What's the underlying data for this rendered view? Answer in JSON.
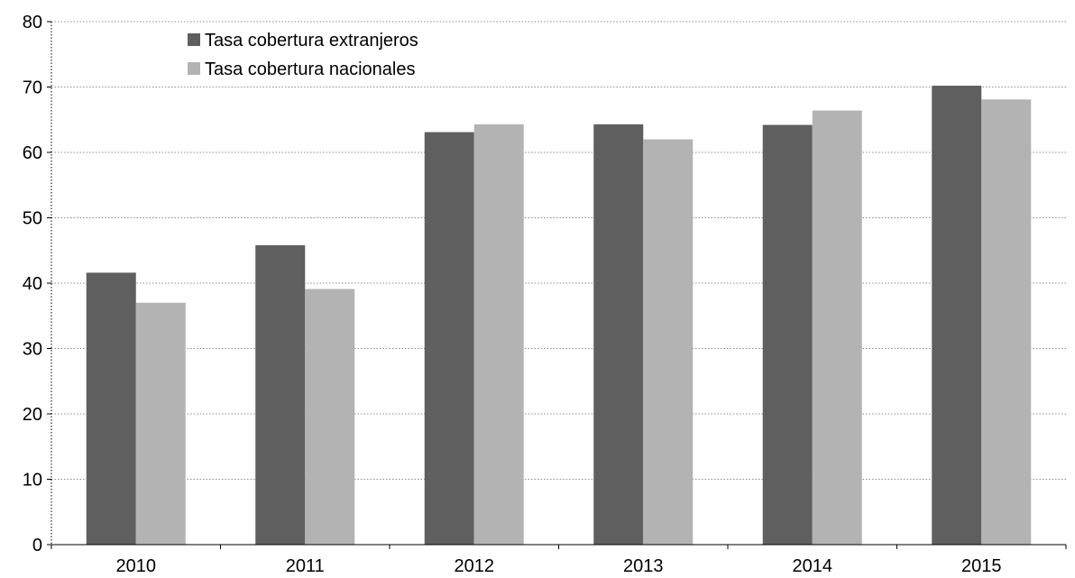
{
  "chart_data": {
    "type": "bar",
    "categories": [
      "2010",
      "2011",
      "2012",
      "2013",
      "2014",
      "2015"
    ],
    "series": [
      {
        "name": "Tasa cobertura extranjeros",
        "color": "#5f5f5f",
        "values": [
          41.6,
          45.8,
          63.1,
          64.3,
          64.2,
          70.2
        ]
      },
      {
        "name": "Tasa cobertura nacionales",
        "color": "#b3b3b3",
        "values": [
          37.0,
          39.1,
          64.3,
          62.0,
          66.4,
          68.1
        ]
      }
    ],
    "ylim": [
      0,
      80
    ],
    "yticks": [
      0,
      10,
      20,
      30,
      40,
      50,
      60,
      70,
      80
    ],
    "grid": true,
    "legend_position": "top-left",
    "title": "",
    "xlabel": "",
    "ylabel": ""
  }
}
